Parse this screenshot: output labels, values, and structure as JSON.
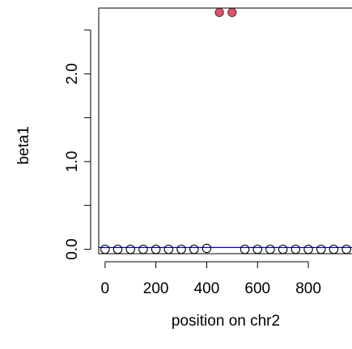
{
  "chart_data": {
    "type": "scatter",
    "xlabel": "position on chr2",
    "ylabel": "beta1",
    "xlim": [
      -25,
      975
    ],
    "ylim": [
      -0.05,
      2.75
    ],
    "x_ticks": [
      0,
      200,
      400,
      600,
      800
    ],
    "x_tick_labels": [
      "0",
      "200",
      "400",
      "600",
      "800"
    ],
    "y_ticks": [
      0.0,
      0.5,
      1.0,
      1.5,
      2.0,
      2.5
    ],
    "y_tick_labels": [
      "0.0",
      "",
      "1.0",
      "",
      "2.0",
      ""
    ],
    "reference_line": {
      "y": 0.02,
      "color": "#0000cc"
    },
    "series": [
      {
        "marker": "open-circle",
        "color": "#000000",
        "points": [
          [
            0,
            0.0
          ],
          [
            50,
            0.0
          ],
          [
            100,
            0.0
          ],
          [
            150,
            0.0
          ],
          [
            200,
            0.0
          ],
          [
            250,
            0.0
          ],
          [
            300,
            0.0
          ],
          [
            350,
            0.0
          ],
          [
            400,
            0.01
          ],
          [
            550,
            0.0
          ],
          [
            600,
            0.0
          ],
          [
            650,
            0.0
          ],
          [
            700,
            0.0
          ],
          [
            750,
            0.0
          ],
          [
            800,
            0.0
          ],
          [
            850,
            0.0
          ],
          [
            900,
            0.0
          ],
          [
            950,
            0.0
          ]
        ]
      },
      {
        "marker": "filled-circle",
        "color": "#df536b",
        "points": [
          [
            450,
            2.7
          ],
          [
            500,
            2.7
          ]
        ]
      }
    ],
    "grid": false,
    "legend": "none"
  }
}
